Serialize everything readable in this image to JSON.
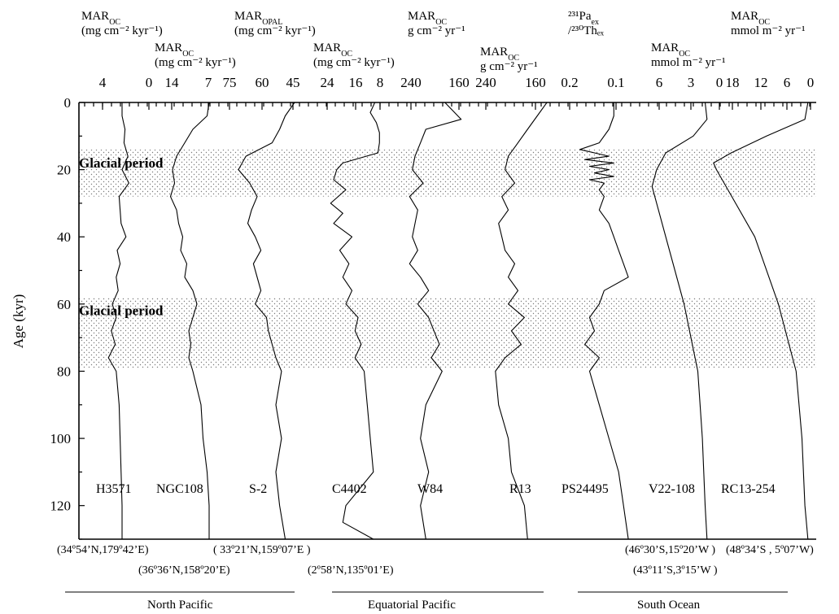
{
  "chart_data": {
    "type": "line",
    "ylabel": "Age (kyr)",
    "ylim": [
      0,
      130
    ],
    "y_ticks": [
      0,
      20,
      40,
      60,
      80,
      100,
      120
    ],
    "glacial_periods": [
      {
        "label": "Glacial period",
        "from": 14,
        "to": 28
      },
      {
        "label": "Glacial period",
        "from": 58,
        "to": 79
      }
    ],
    "panels": [
      {
        "core": "H3571",
        "coords": "(34º54’N,179º42’E)",
        "header": {
          "main": "MAR",
          "sub": "OC",
          "unit": "(mg cm⁻² kyr⁻¹)"
        },
        "ticks": [
          "4",
          "0"
        ],
        "age": [
          0,
          4,
          8,
          12,
          16,
          20,
          24,
          28,
          32,
          36,
          40,
          44,
          48,
          52,
          56,
          60,
          64,
          68,
          72,
          76,
          80,
          90,
          100,
          110,
          120,
          130
        ],
        "x": [
          3.0,
          3.0,
          2.7,
          2.8,
          2.4,
          3.0,
          2.3,
          3.3,
          3.2,
          3.1,
          2.6,
          3.5,
          3.2,
          3.6,
          3.4,
          4.0,
          3.6,
          4.1,
          3.7,
          4.4,
          3.6,
          3.3,
          3.2,
          3.1,
          3.0,
          3.0
        ]
      },
      {
        "core": "NGC108",
        "coords": "(36º36’N,158º20’E)",
        "header": {
          "main": "MAR",
          "sub": "OC",
          "unit": "(mg cm⁻² kyr⁻¹)"
        },
        "ticks": [
          "14",
          "7"
        ],
        "age": [
          0,
          4,
          8,
          12,
          16,
          20,
          24,
          28,
          32,
          36,
          40,
          44,
          48,
          52,
          56,
          60,
          64,
          68,
          72,
          76,
          80,
          90,
          100,
          110,
          120,
          130
        ],
        "x": [
          3.0,
          3.5,
          7.0,
          9.0,
          11.0,
          12.0,
          11.5,
          12.5,
          11.0,
          10.5,
          9.5,
          10.0,
          8.5,
          9.0,
          7.0,
          6.0,
          7.0,
          8.0,
          7.5,
          8.0,
          7.0,
          5.0,
          4.5,
          3.5,
          3.0,
          3.0
        ]
      },
      {
        "core": "S-2",
        "coords": "( 33º21’N,159º07’E )",
        "header": {
          "main": "MAR",
          "sub": "OPAL",
          "unit": "(mg cm⁻² kyr⁻¹)"
        },
        "ticks": [
          "75",
          "60",
          "45"
        ],
        "age": [
          0,
          4,
          8,
          12,
          16,
          20,
          24,
          28,
          32,
          36,
          40,
          44,
          48,
          52,
          56,
          60,
          64,
          68,
          72,
          76,
          80,
          90,
          100,
          110,
          120,
          130
        ],
        "x": [
          40,
          45,
          48,
          52,
          66,
          70,
          64,
          60,
          63,
          65,
          61,
          58,
          62,
          60,
          58,
          61,
          55,
          54,
          52,
          50,
          47,
          50,
          47,
          50,
          48,
          45
        ]
      },
      {
        "core": "C4402",
        "coords": "(2º58’N,135º01’E)",
        "header": {
          "main": "MAR",
          "sub": "OC",
          "unit": "(mg cm⁻² kyr⁻¹)"
        },
        "ticks": [
          "24",
          "16",
          "8"
        ],
        "age": [
          0,
          3,
          6,
          9,
          12,
          15,
          18,
          20,
          23,
          26,
          30,
          33,
          36,
          40,
          44,
          48,
          52,
          56,
          60,
          64,
          68,
          72,
          76,
          80,
          90,
          100,
          110,
          120,
          125,
          130
        ],
        "x": [
          7.5,
          9.0,
          7.0,
          6.0,
          6.0,
          6.5,
          18.0,
          20.0,
          21.0,
          17.0,
          22.0,
          18.0,
          21.0,
          15.0,
          19.0,
          16.0,
          18.0,
          15.0,
          17.0,
          13.0,
          14.0,
          12.0,
          14.0,
          11.0,
          10.0,
          9.0,
          8.0,
          17.0,
          18.0,
          8.0
        ]
      },
      {
        "core": "W84",
        "coords": "",
        "header": {
          "main": "MAR",
          "sub": "OC",
          "unit": "g cm⁻² yr⁻¹"
        },
        "ticks": [
          "240",
          "160"
        ],
        "age": [
          0,
          5,
          8,
          12,
          16,
          20,
          24,
          28,
          32,
          36,
          40,
          44,
          48,
          52,
          56,
          60,
          64,
          68,
          72,
          76,
          80,
          90,
          100,
          110,
          120,
          130
        ],
        "x": [
          150,
          120,
          185,
          195,
          205,
          210,
          190,
          215,
          200,
          205,
          210,
          200,
          215,
          195,
          180,
          200,
          180,
          170,
          160,
          175,
          155,
          185,
          195,
          180,
          195,
          185
        ]
      },
      {
        "core": "R13",
        "coords": "",
        "header": {
          "main": "MAR",
          "sub": "OC",
          "unit": "g cm⁻² yr⁻¹"
        },
        "ticks": [
          "240",
          "160"
        ],
        "age": [
          0,
          4,
          8,
          12,
          16,
          20,
          24,
          28,
          32,
          36,
          40,
          44,
          48,
          52,
          56,
          60,
          64,
          68,
          72,
          76,
          80,
          90,
          100,
          110,
          120,
          130
        ],
        "x": [
          150,
          165,
          180,
          195,
          210,
          215,
          200,
          220,
          210,
          225,
          220,
          215,
          200,
          210,
          195,
          210,
          185,
          205,
          190,
          215,
          230,
          225,
          210,
          205,
          185,
          180
        ]
      },
      {
        "core": "PS24495",
        "coords": "(46º30’S,15º20’W )",
        "header": {
          "main": "²³¹Pa",
          "sub": "ex",
          "unit": "/²³⁰Thₑₓ"
        },
        "ticks": [
          "0.2",
          "0.1"
        ],
        "age": [
          0,
          4,
          8,
          12,
          14,
          16,
          17,
          18,
          19,
          20,
          21,
          22,
          23,
          24,
          26,
          28,
          32,
          36,
          40,
          44,
          48,
          52,
          56,
          60,
          64,
          68,
          72,
          76,
          80,
          90,
          100,
          110,
          120,
          130
        ],
        "x": [
          0.09,
          0.09,
          0.1,
          0.12,
          0.16,
          0.1,
          0.15,
          0.09,
          0.14,
          0.1,
          0.13,
          0.09,
          0.14,
          0.11,
          0.12,
          0.11,
          0.12,
          0.1,
          0.09,
          0.08,
          0.07,
          0.06,
          0.11,
          0.12,
          0.14,
          0.13,
          0.15,
          0.12,
          0.14,
          0.12,
          0.1,
          0.08,
          0.07,
          0.06
        ]
      },
      {
        "core": "V22-108",
        "coords": "(43º11’S,3º15’W )",
        "header": {
          "main": "MAR",
          "sub": "OC",
          "unit": "mmol m⁻² yr⁻¹"
        },
        "ticks": [
          "6",
          "3",
          "0"
        ],
        "age": [
          0,
          5,
          10,
          15,
          20,
          25,
          40,
          60,
          80,
          100,
          120,
          130
        ],
        "x": [
          1.2,
          1.0,
          2.5,
          5.5,
          6.5,
          7.0,
          5.5,
          3.5,
          2.0,
          1.5,
          1.2,
          1.0
        ]
      },
      {
        "core": "RC13-254",
        "coords": "(48º34’S , 5º07’W)",
        "header": {
          "main": "MAR",
          "sub": "OC",
          "unit": "mmol m⁻² yr⁻¹"
        },
        "ticks": [
          "18",
          "12",
          "6",
          "0"
        ],
        "age": [
          0,
          5,
          10,
          15,
          18,
          20,
          40,
          60,
          80,
          100,
          120,
          130
        ],
        "x": [
          1.0,
          1.5,
          8.0,
          14.0,
          17.0,
          16.5,
          10.0,
          6.0,
          3.0,
          2.0,
          1.5,
          1.0
        ]
      }
    ],
    "regions": [
      {
        "label": "North Pacific"
      },
      {
        "label": "Equatorial Pacific"
      },
      {
        "label": "South Ocean"
      }
    ]
  }
}
